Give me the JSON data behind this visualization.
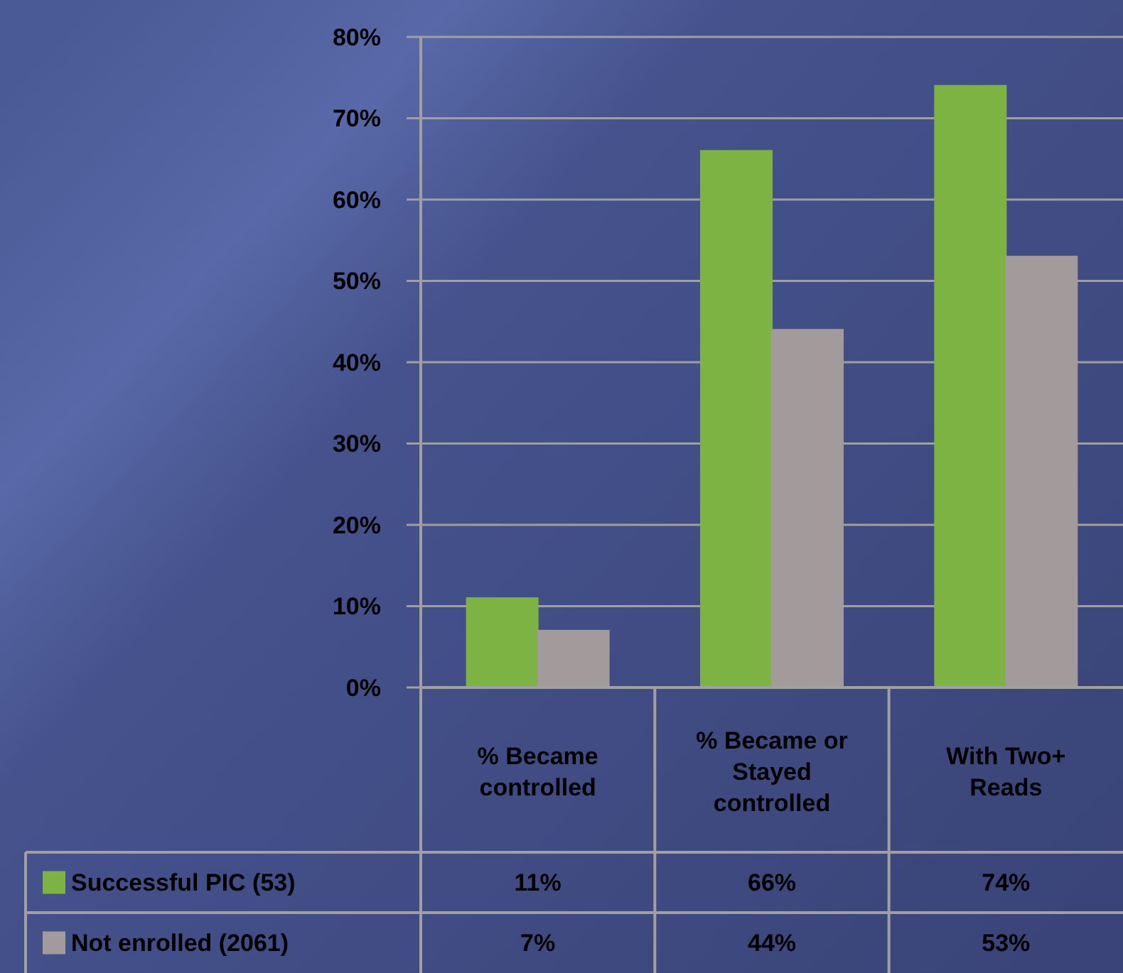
{
  "chart_data": {
    "type": "bar",
    "categories": [
      "% Became controlled",
      "% Became or Stayed controlled",
      "With Two+ Reads"
    ],
    "series": [
      {
        "name": "Successful PIC (53)",
        "color": "#7cb342",
        "values": [
          11,
          66,
          74
        ],
        "value_labels": [
          "11%",
          "66%",
          "74%"
        ]
      },
      {
        "name": "Not enrolled (2061)",
        "color": "#a39a9c",
        "values": [
          7,
          44,
          53
        ],
        "value_labels": [
          "7%",
          "44%",
          "53%"
        ]
      }
    ],
    "ylim": [
      0,
      80
    ],
    "yticks": [
      {
        "value": 0,
        "label": "0%"
      },
      {
        "value": 10,
        "label": "10%"
      },
      {
        "value": 20,
        "label": "20%"
      },
      {
        "value": 30,
        "label": "30%"
      },
      {
        "value": 40,
        "label": "40%"
      },
      {
        "value": 50,
        "label": "50%"
      },
      {
        "value": 60,
        "label": "60%"
      },
      {
        "value": 70,
        "label": "70%"
      },
      {
        "value": 80,
        "label": "80%"
      }
    ],
    "grid": "y",
    "legend": "bottom left"
  }
}
